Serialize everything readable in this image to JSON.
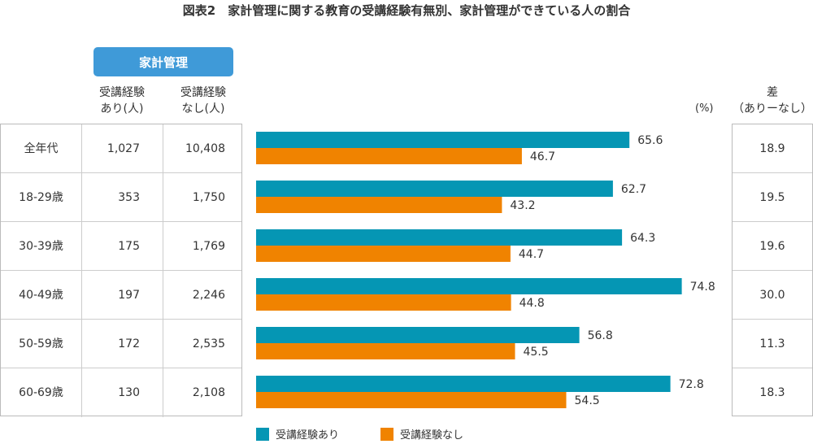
{
  "title": "図表2　家計管理に関する教育の受講経験有無別、家計管理ができている人の割合",
  "group_header": "家計管理",
  "col_headers": [
    {
      "line1": "受講経験",
      "line2": "あり(人)"
    },
    {
      "line1": "受講経験",
      "line2": "なし(人)"
    }
  ],
  "unit": "(%)",
  "diff_header": {
    "line1": "差",
    "line2": "（ありーなし）"
  },
  "rows": [
    {
      "label": "全年代",
      "n_yes": "1,027",
      "n_no": "10,408",
      "diff": "18.9"
    },
    {
      "label": "18-29歳",
      "n_yes": "353",
      "n_no": "1,750",
      "diff": "19.5"
    },
    {
      "label": "30-39歳",
      "n_yes": "175",
      "n_no": "1,769",
      "diff": "19.6"
    },
    {
      "label": "40-49歳",
      "n_yes": "197",
      "n_no": "2,246",
      "diff": "30.0"
    },
    {
      "label": "50-59歳",
      "n_yes": "172",
      "n_no": "2,535",
      "diff": "11.3"
    },
    {
      "label": "60-69歳",
      "n_yes": "130",
      "n_no": "2,108",
      "diff": "18.3"
    }
  ],
  "chart_data": {
    "type": "bar",
    "orientation": "horizontal",
    "categories": [
      "全年代",
      "18-29歳",
      "30-39歳",
      "40-49歳",
      "50-59歳",
      "60-69歳"
    ],
    "series": [
      {
        "name": "受講経験あり",
        "color": "#0596b4",
        "values": [
          65.6,
          62.7,
          64.3,
          74.8,
          56.8,
          72.8
        ]
      },
      {
        "name": "受講経験なし",
        "color": "#f08300",
        "values": [
          46.7,
          43.2,
          44.7,
          44.8,
          45.5,
          54.5
        ]
      }
    ],
    "xlim": [
      0,
      100
    ],
    "unit": "(%)",
    "grid": false,
    "legend": "bottom"
  }
}
